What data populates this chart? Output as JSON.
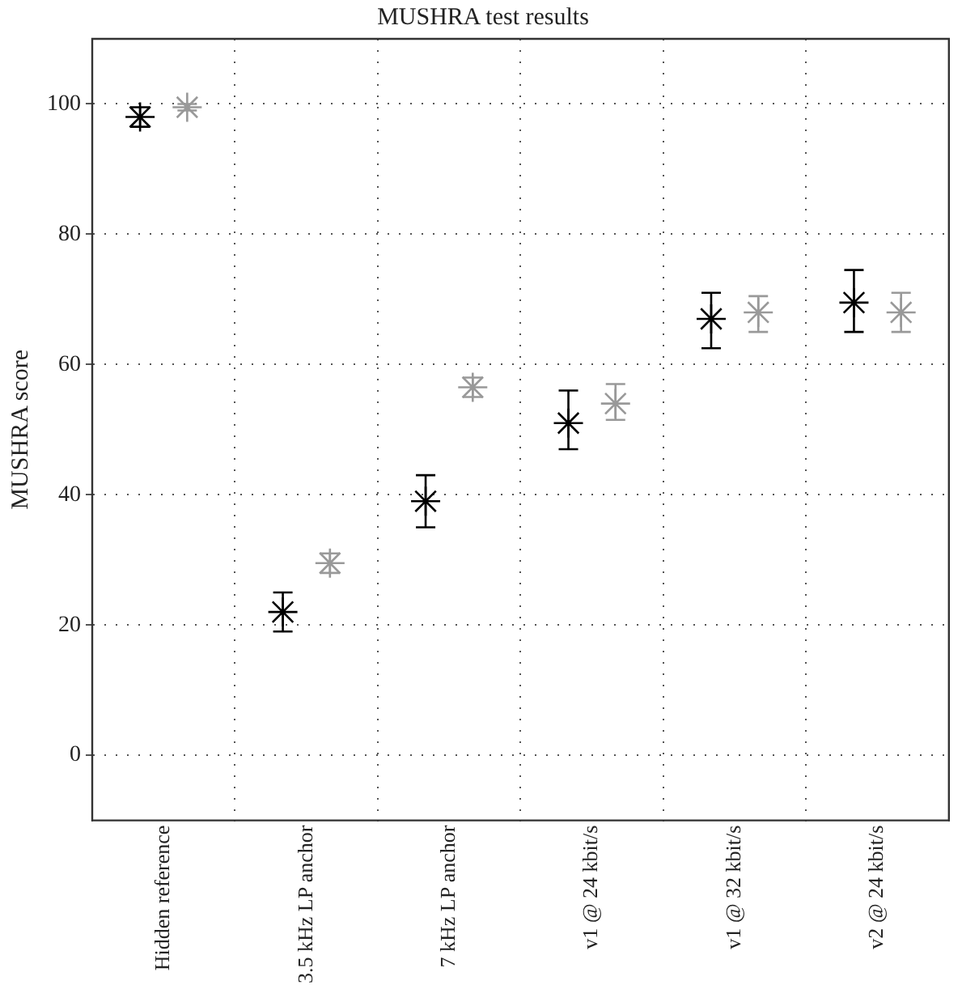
{
  "chart_data": {
    "type": "scatter",
    "title": "MUSHRA test results",
    "ylabel": "MUSHRA score",
    "categories": [
      "Hidden reference",
      "3.5 kHz LP anchor",
      "7 kHz LP anchor",
      "v1 @ 24 kbit/s",
      "v1 @ 32 kbit/s",
      "v2 @ 24 kbit/s"
    ],
    "series": [
      {
        "color": "#000000",
        "values": [
          98,
          22,
          39,
          51,
          67,
          69.5
        ],
        "errors": [
          [
            96.5,
            99.5
          ],
          [
            19,
            25
          ],
          [
            35,
            43
          ],
          [
            47,
            56
          ],
          [
            62.5,
            71
          ],
          [
            65,
            74.5
          ]
        ]
      },
      {
        "color": "#999999",
        "values": [
          99.5,
          29.5,
          56.5,
          54,
          68,
          68
        ],
        "errors": [
          [
            99,
            100
          ],
          [
            28,
            31
          ],
          [
            55,
            58
          ],
          [
            51.5,
            57
          ],
          [
            65,
            70.5
          ],
          [
            65,
            71
          ]
        ]
      }
    ],
    "ylim": [
      -10,
      110
    ],
    "yticks": [
      0,
      20,
      40,
      60,
      80,
      100
    ],
    "grid": true,
    "marker": "cross",
    "legend": false
  }
}
